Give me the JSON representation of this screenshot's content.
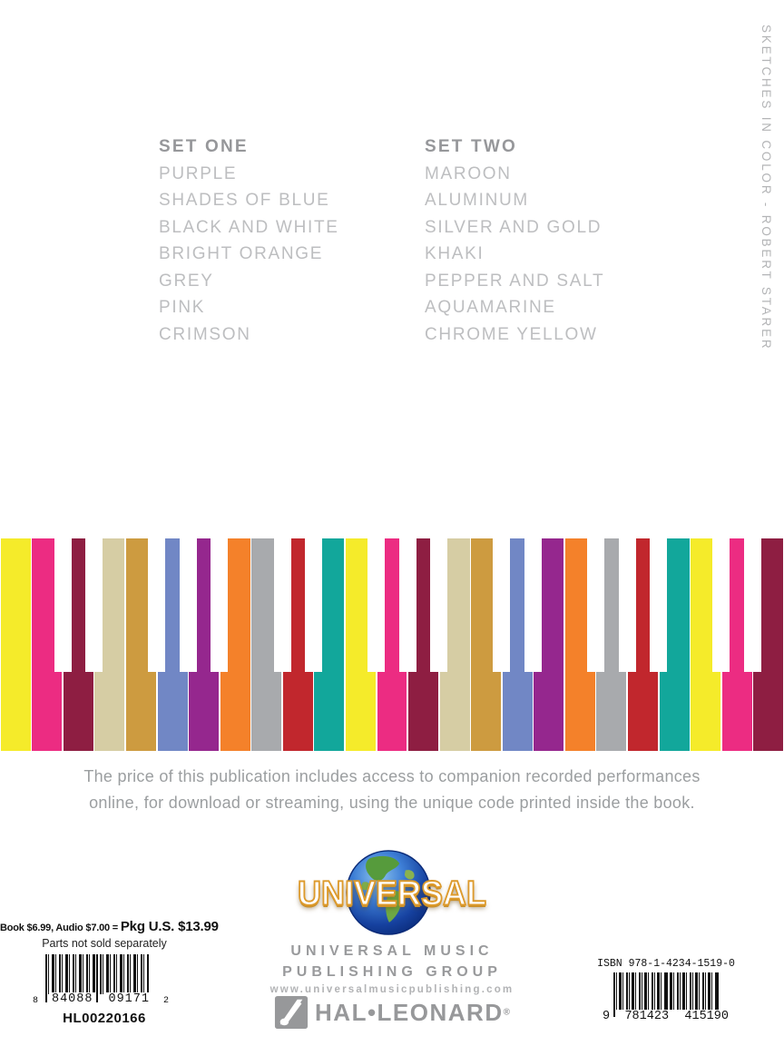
{
  "spine": {
    "text": "SKETCHES IN COLOR - ROBERT STARER"
  },
  "sets": {
    "one": {
      "title": "SET ONE",
      "items": [
        "PURPLE",
        "SHADES OF BLUE",
        "BLACK AND WHITE",
        "BRIGHT ORANGE",
        "GREY",
        "PINK",
        "CRIMSON"
      ]
    },
    "two": {
      "title": "SET TWO",
      "items": [
        "MAROON",
        "ALUMINUM",
        "SILVER AND GOLD",
        "KHAKI",
        "PEPPER AND SALT",
        "AQUAMARINE",
        "CHROME YELLOW"
      ]
    }
  },
  "keyboard": {
    "palette": {
      "yellow": "#f5eb2a",
      "pink": "#ec2c82",
      "maroon": "#8e1e42",
      "tan": "#d6cda4",
      "gold": "#cd9b40",
      "blue": "#7187c5",
      "purple": "#95278e",
      "orange": "#f4812a",
      "gray": "#a8aaad",
      "red": "#c1272d",
      "teal": "#12a79b"
    },
    "black_key_color": "#ffffff",
    "key_sequence": [
      "yellow",
      "pink",
      "maroon",
      "tan",
      "gold",
      "blue",
      "purple",
      "orange",
      "gray",
      "red",
      "teal",
      "yellow",
      "pink",
      "maroon",
      "tan",
      "gold",
      "blue",
      "purple",
      "orange",
      "gray",
      "red",
      "teal",
      "yellow",
      "pink",
      "maroon"
    ],
    "black_key_gaps": [
      2,
      3,
      5,
      6,
      7,
      9,
      10,
      12,
      13,
      14,
      16,
      17,
      19,
      20,
      21,
      23,
      24
    ]
  },
  "access_note": {
    "line1": "The price of this publication includes access to companion recorded performances",
    "line2": "online, for download or streaming, using the unique code printed inside the book."
  },
  "universal": {
    "logo_text": "UNIVERSAL",
    "line1": "UNIVERSAL MUSIC",
    "line2": "PUBLISHING GROUP",
    "website": "www.universalmusicpublishing.com"
  },
  "hal_leonard": {
    "name": "HAL•LEONARD",
    "reg": "®"
  },
  "pricing": {
    "prefix": "Book $6.99, Audio $7.00 = ",
    "package": "Pkg U.S. $13.99",
    "note": "Parts not sold separately",
    "catalog": "HL00220166"
  },
  "upc": {
    "lead": "8",
    "group1": "84088",
    "group2": "09171",
    "check": "2"
  },
  "isbn": {
    "label": "ISBN 978-1-4234-1519-0",
    "lead": "9",
    "group1": "781423",
    "group2": "415190"
  }
}
